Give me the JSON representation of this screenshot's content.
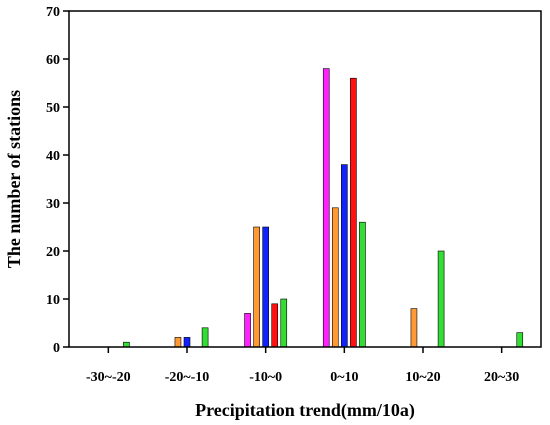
{
  "chart_data": {
    "type": "bar",
    "title": "",
    "xlabel": "Precipitation trend(mm/10a)",
    "ylabel": "The number of stations",
    "categories": [
      "-30~-20",
      "-20~-10",
      "-10~0",
      "0~10",
      "10~20",
      "20~30"
    ],
    "ylim": [
      0,
      70
    ],
    "yticks": [
      0,
      10,
      20,
      30,
      40,
      50,
      60,
      70
    ],
    "grid": false,
    "legend": "none",
    "series": [
      {
        "color": "#ff22ff",
        "values": [
          0,
          0,
          7,
          58,
          0,
          0
        ]
      },
      {
        "color": "#ff9933",
        "values": [
          0,
          2,
          25,
          29,
          8,
          0
        ]
      },
      {
        "color": "#1122ff",
        "values": [
          0,
          2,
          25,
          38,
          0,
          0
        ]
      },
      {
        "color": "#ff1111",
        "values": [
          0,
          0,
          9,
          56,
          0,
          0
        ]
      },
      {
        "color": "#33dd33",
        "values": [
          1,
          4,
          10,
          26,
          20,
          3
        ]
      }
    ]
  }
}
